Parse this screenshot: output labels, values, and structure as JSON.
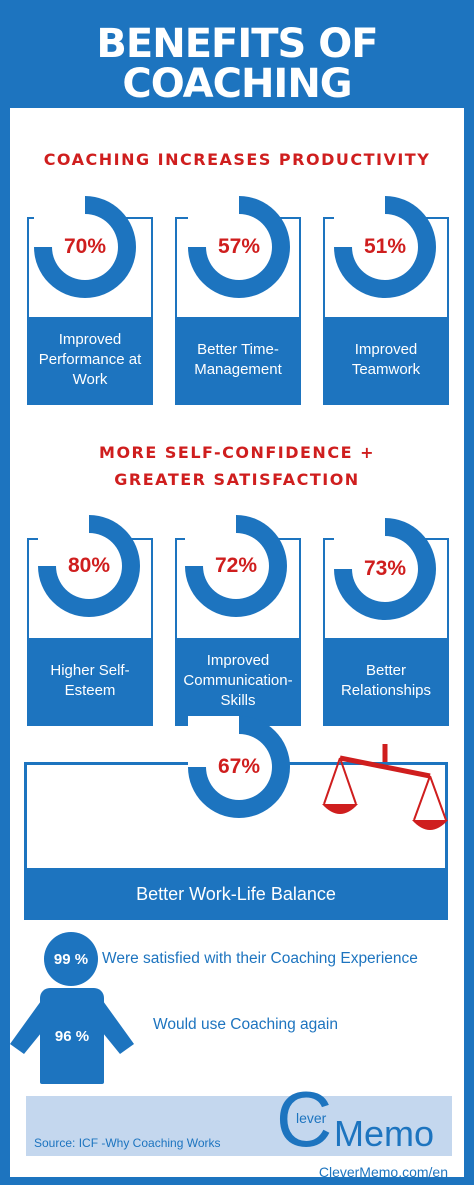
{
  "header": {
    "line1": "BENEFITS OF",
    "line2": "COACHING"
  },
  "productivity": {
    "title": "COACHING INCREASES PRODUCTIVITY",
    "cards": [
      {
        "value": "70%",
        "label": "Improved Performance at Work"
      },
      {
        "value": "57%",
        "label": "Better Time-Management"
      },
      {
        "value": "51%",
        "label": "Improved Teamwork"
      }
    ]
  },
  "confidence": {
    "title_line1": "MORE SELF-CONFIDENCE +",
    "title_line2": "GREATER SATISFACTION",
    "cards": [
      {
        "value": "80%",
        "label": "Higher Self-Esteem"
      },
      {
        "value": "72%",
        "label": "Improved Communication-Skills"
      },
      {
        "value": "73%",
        "label": "Better Relationships"
      }
    ]
  },
  "balance": {
    "value": "67%",
    "label": "Better Work-Life Balance",
    "icon": "scales-icon"
  },
  "satisfaction": {
    "stat1_value": "99 %",
    "stat1_text": "Were satisfied with their Coaching Experience",
    "stat2_value": "96 %",
    "stat2_text": "Would use Coaching again"
  },
  "footer": {
    "source": "Source: ICF -Why Coaching Works",
    "logo_small": "lever",
    "logo_c": "C",
    "logo_main": "Memo",
    "url": "CleverMemo.com/en"
  },
  "colors": {
    "blue": "#1d74bf",
    "red": "#cf1e1e",
    "footer_bg": "#c4d7ee"
  }
}
